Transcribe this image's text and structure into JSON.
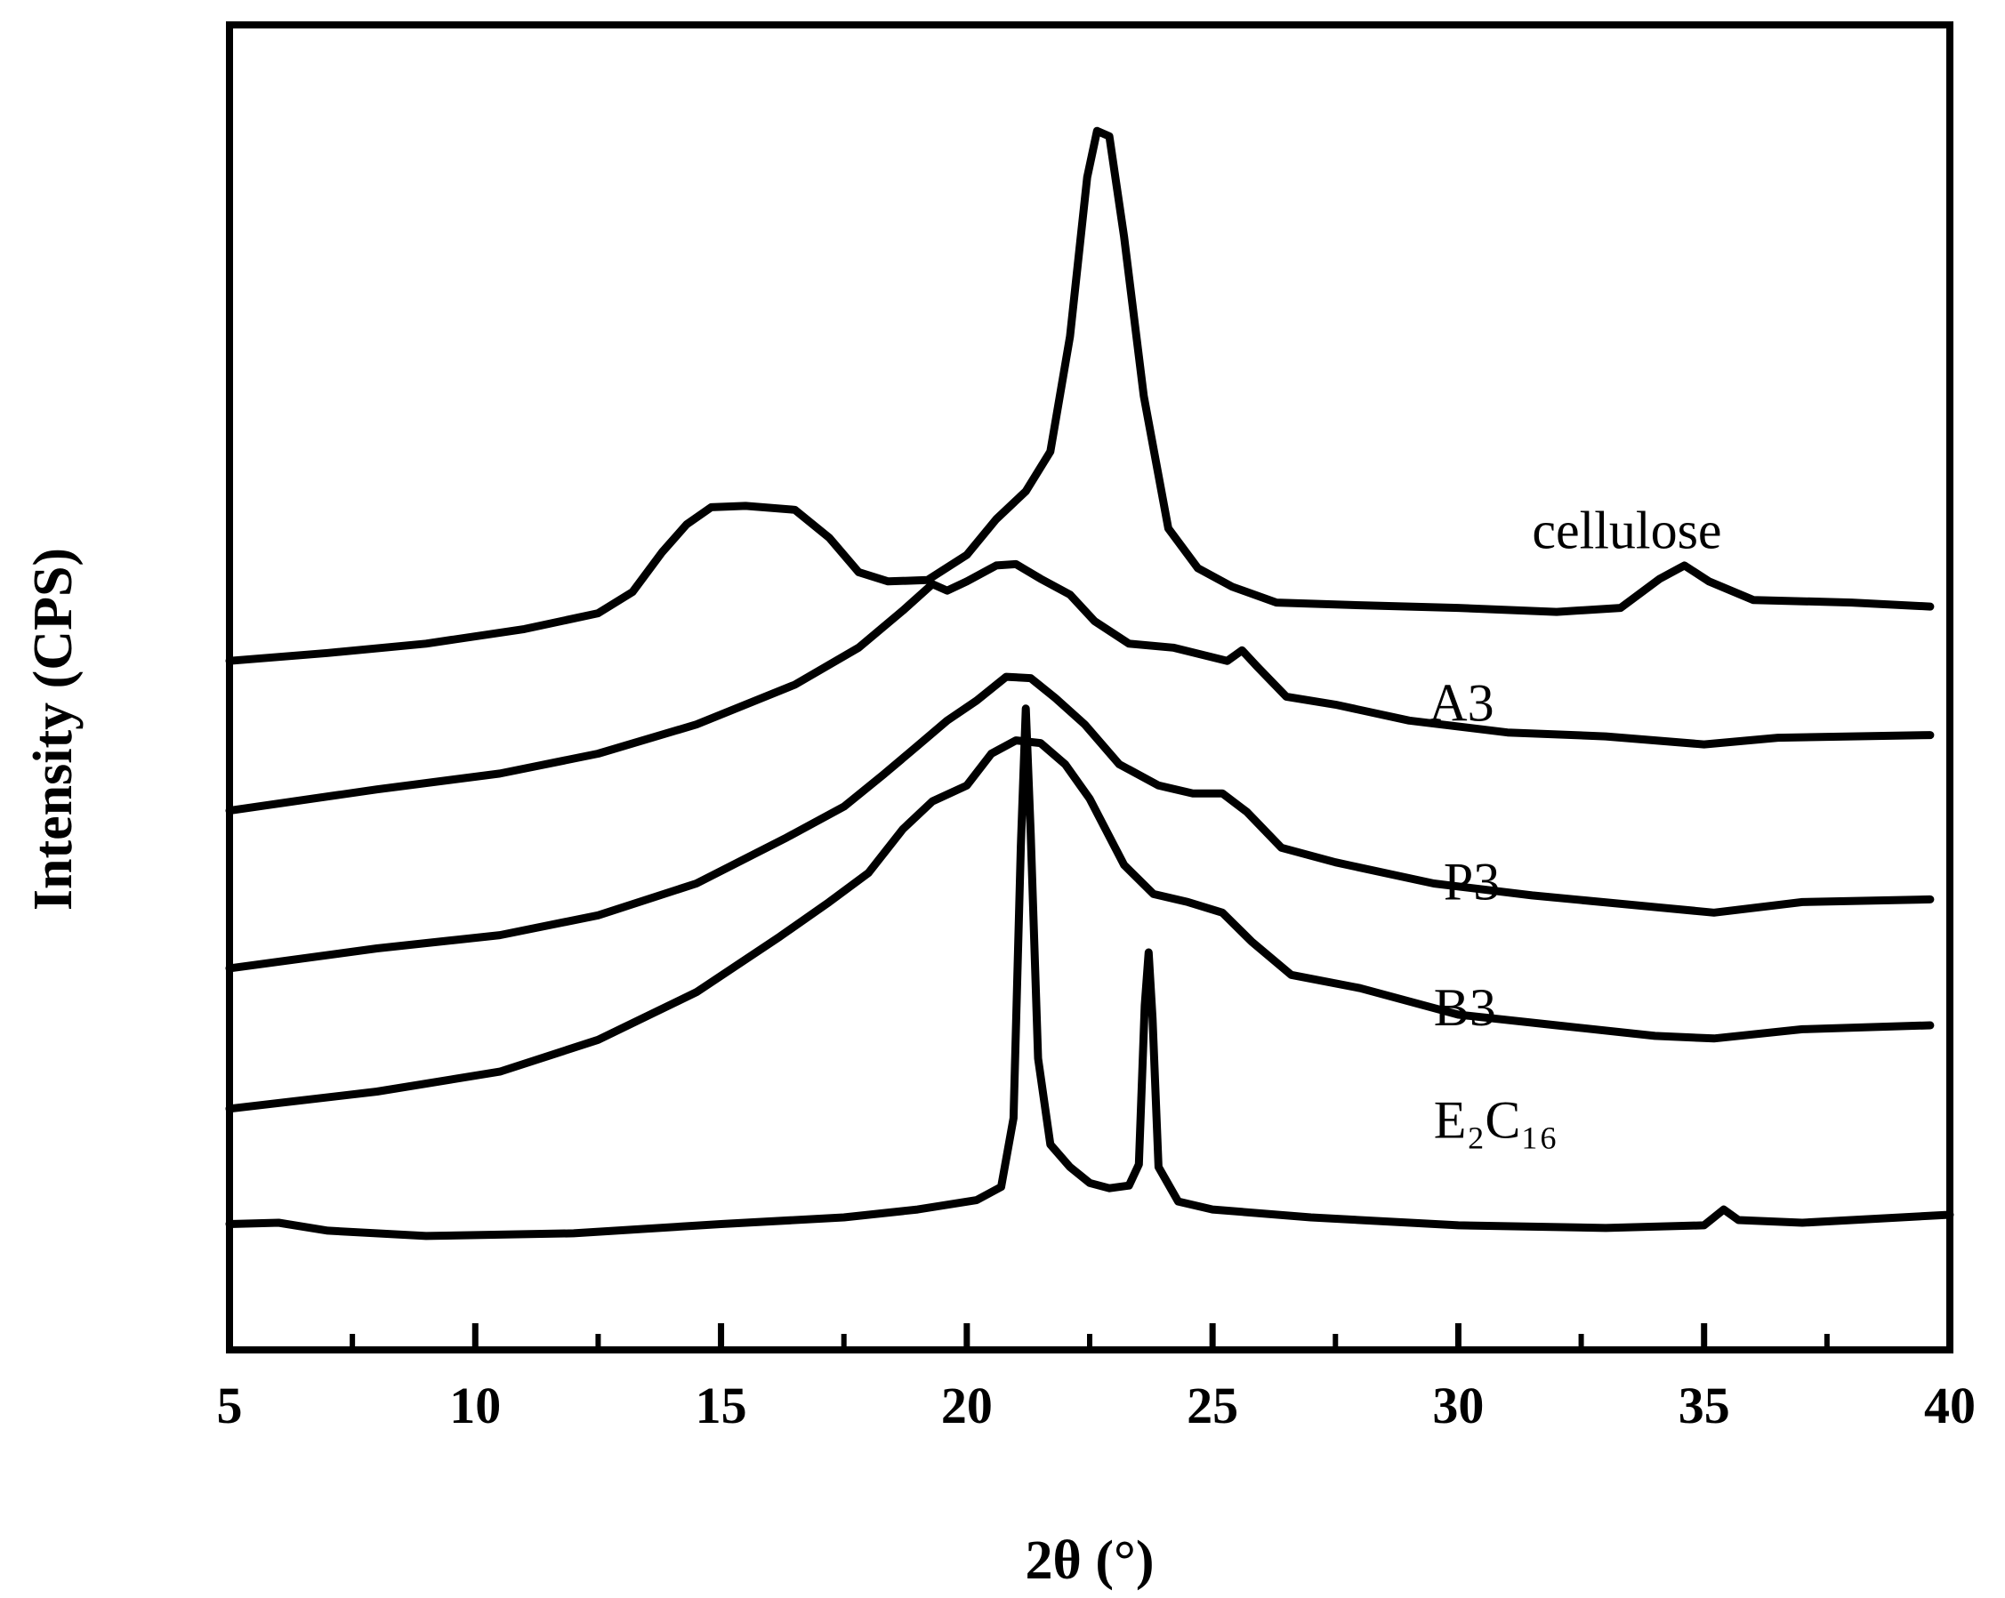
{
  "chart_data": {
    "type": "line",
    "title": "",
    "xlabel": "2θ (°)",
    "ylabel": "Intensity (CPS)",
    "xlim": [
      5,
      40
    ],
    "ylim": [
      0,
      100
    ],
    "x_ticks": [
      "5",
      "10",
      "15",
      "20",
      "25",
      "30",
      "35",
      "40"
    ],
    "y_tick_labels": false,
    "grid": false,
    "legend": "none",
    "line_color": "#000000",
    "series": [
      {
        "name": "cellulose",
        "label_x": 31.5,
        "label_y": 60.5,
        "points": [
          [
            5,
            52
          ],
          [
            7,
            52.6
          ],
          [
            9,
            53.3
          ],
          [
            11,
            54.4
          ],
          [
            12.5,
            55.6
          ],
          [
            13.2,
            57.2
          ],
          [
            13.8,
            60.2
          ],
          [
            14.3,
            62.3
          ],
          [
            14.8,
            63.6
          ],
          [
            15.5,
            63.7
          ],
          [
            16.5,
            63.4
          ],
          [
            17.2,
            61.3
          ],
          [
            17.8,
            58.7
          ],
          [
            18.4,
            58.0
          ],
          [
            19.2,
            58.1
          ],
          [
            20,
            60.0
          ],
          [
            20.6,
            62.7
          ],
          [
            21.2,
            64.8
          ],
          [
            21.7,
            67.8
          ],
          [
            22.1,
            76.5
          ],
          [
            22.45,
            88.5
          ],
          [
            22.65,
            92.0
          ],
          [
            22.9,
            91.6
          ],
          [
            23.2,
            84.0
          ],
          [
            23.6,
            72.0
          ],
          [
            24.1,
            62.0
          ],
          [
            24.7,
            59.0
          ],
          [
            25.4,
            57.6
          ],
          [
            26.3,
            56.4
          ],
          [
            28,
            56.2
          ],
          [
            30,
            56.0
          ],
          [
            32,
            55.7
          ],
          [
            33.3,
            56.0
          ],
          [
            34.1,
            58.2
          ],
          [
            34.6,
            59.2
          ],
          [
            35.1,
            58.0
          ],
          [
            36,
            56.6
          ],
          [
            38,
            56.4
          ],
          [
            39.6,
            56.1
          ]
        ]
      },
      {
        "name": "A3",
        "label_x": 29.4,
        "label_y": 47.5,
        "points": [
          [
            5,
            40.7
          ],
          [
            8,
            42.3
          ],
          [
            10.5,
            43.5
          ],
          [
            12.5,
            45.0
          ],
          [
            14.5,
            47.2
          ],
          [
            16.5,
            50.2
          ],
          [
            17.8,
            53.0
          ],
          [
            18.7,
            55.8
          ],
          [
            19.3,
            57.8
          ],
          [
            19.6,
            57.3
          ],
          [
            20.0,
            58.0
          ],
          [
            20.6,
            59.2
          ],
          [
            21.0,
            59.3
          ],
          [
            21.5,
            58.2
          ],
          [
            22.1,
            57.0
          ],
          [
            22.6,
            55.0
          ],
          [
            23.3,
            53.3
          ],
          [
            24.2,
            53.0
          ],
          [
            25.3,
            52.0
          ],
          [
            25.6,
            52.8
          ],
          [
            25.9,
            51.6
          ],
          [
            26.5,
            49.3
          ],
          [
            27.5,
            48.7
          ],
          [
            29,
            47.5
          ],
          [
            31,
            46.6
          ],
          [
            33,
            46.3
          ],
          [
            35,
            45.7
          ],
          [
            36.5,
            46.2
          ],
          [
            39.6,
            46.4
          ]
        ]
      },
      {
        "name": "P3",
        "label_x": 29.7,
        "label_y": 34.0,
        "points": [
          [
            5,
            28.8
          ],
          [
            8,
            30.3
          ],
          [
            10.5,
            31.3
          ],
          [
            12.5,
            32.8
          ],
          [
            14.5,
            35.2
          ],
          [
            16.3,
            38.6
          ],
          [
            17.5,
            41.0
          ],
          [
            18.3,
            43.4
          ],
          [
            19.0,
            45.6
          ],
          [
            19.6,
            47.5
          ],
          [
            20.2,
            49.0
          ],
          [
            20.8,
            50.8
          ],
          [
            21.3,
            50.7
          ],
          [
            21.8,
            49.2
          ],
          [
            22.4,
            47.2
          ],
          [
            23.1,
            44.2
          ],
          [
            23.9,
            42.6
          ],
          [
            24.6,
            42.0
          ],
          [
            25.2,
            42.0
          ],
          [
            25.7,
            40.6
          ],
          [
            26.4,
            37.9
          ],
          [
            27.5,
            36.8
          ],
          [
            29.5,
            35.2
          ],
          [
            31.5,
            34.3
          ],
          [
            33.5,
            33.6
          ],
          [
            35.2,
            33.0
          ],
          [
            37,
            33.8
          ],
          [
            39.6,
            34.0
          ]
        ]
      },
      {
        "name": "B3",
        "label_x": 29.5,
        "label_y": 24.5,
        "points": [
          [
            5,
            18.2
          ],
          [
            8,
            19.5
          ],
          [
            10.5,
            21.0
          ],
          [
            12.5,
            23.4
          ],
          [
            14.5,
            27.0
          ],
          [
            16.2,
            31.2
          ],
          [
            17.2,
            33.8
          ],
          [
            18.0,
            36.0
          ],
          [
            18.7,
            39.3
          ],
          [
            19.3,
            41.4
          ],
          [
            20.0,
            42.6
          ],
          [
            20.5,
            45.0
          ],
          [
            21.0,
            46.0
          ],
          [
            21.5,
            45.8
          ],
          [
            22.0,
            44.2
          ],
          [
            22.5,
            41.6
          ],
          [
            23.2,
            36.6
          ],
          [
            23.8,
            34.4
          ],
          [
            24.5,
            33.8
          ],
          [
            25.2,
            33.0
          ],
          [
            25.8,
            30.8
          ],
          [
            26.6,
            28.3
          ],
          [
            28,
            27.3
          ],
          [
            30,
            25.3
          ],
          [
            32,
            24.5
          ],
          [
            34,
            23.7
          ],
          [
            35.2,
            23.5
          ],
          [
            37,
            24.2
          ],
          [
            39.6,
            24.5
          ]
        ]
      },
      {
        "name": "E₂C₁₆",
        "label_x": 29.5,
        "label_y": 16.0,
        "points": [
          [
            5,
            9.5
          ],
          [
            6,
            9.6
          ],
          [
            7,
            9.0
          ],
          [
            9,
            8.6
          ],
          [
            12,
            8.8
          ],
          [
            15,
            9.5
          ],
          [
            17.5,
            10.0
          ],
          [
            19,
            10.6
          ],
          [
            20.2,
            11.3
          ],
          [
            20.7,
            12.3
          ],
          [
            20.95,
            17.5
          ],
          [
            21.1,
            38.0
          ],
          [
            21.2,
            48.4
          ],
          [
            21.3,
            39.0
          ],
          [
            21.45,
            22.0
          ],
          [
            21.7,
            15.5
          ],
          [
            22.1,
            13.8
          ],
          [
            22.5,
            12.6
          ],
          [
            22.9,
            12.2
          ],
          [
            23.3,
            12.4
          ],
          [
            23.5,
            14.0
          ],
          [
            23.62,
            26.0
          ],
          [
            23.7,
            30.0
          ],
          [
            23.78,
            25.0
          ],
          [
            23.9,
            13.8
          ],
          [
            24.3,
            11.2
          ],
          [
            25,
            10.6
          ],
          [
            27,
            10.0
          ],
          [
            30,
            9.4
          ],
          [
            33,
            9.2
          ],
          [
            35.0,
            9.4
          ],
          [
            35.4,
            10.6
          ],
          [
            35.7,
            9.8
          ],
          [
            37,
            9.6
          ],
          [
            40,
            10.2
          ]
        ]
      }
    ]
  }
}
